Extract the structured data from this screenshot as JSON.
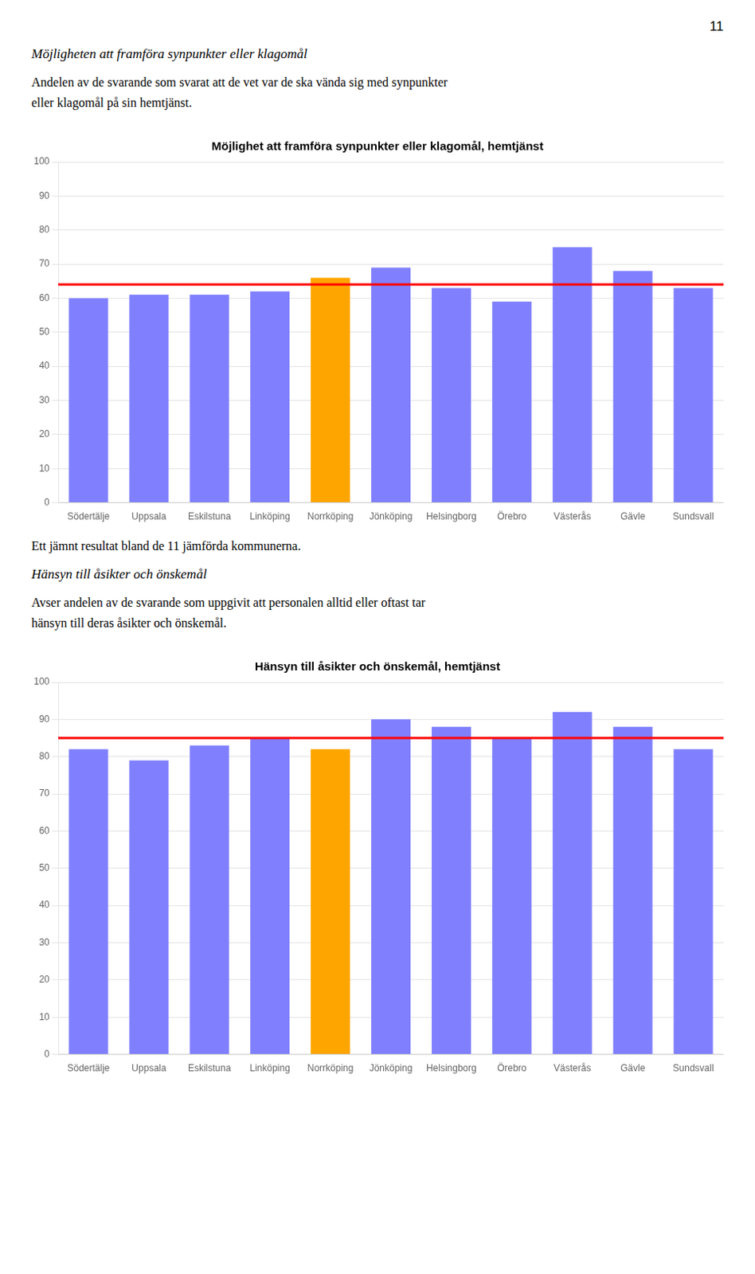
{
  "chart_data": [
    {
      "type": "bar",
      "annotations": [
        "11",
        "Möjligheten att framföra synpunkter eller klagomål",
        "Andelen av de svarande som svarat att de vet var de ska vända sig med synpunkter\neller klagomål på sin hemtjänst."
      ],
      "title": "Möjlighet att framföra synpunkter eller klagomål, hemtjänst",
      "categories": [
        "Södertälje",
        "Uppsala",
        "Eskilstuna",
        "Linköping",
        "Norrköping",
        "Jönköping",
        "Helsingborg",
        "Örebro",
        "Västerås",
        "Gävle",
        "Sundsvall"
      ],
      "values": [
        60,
        61,
        61,
        62,
        66,
        69,
        63,
        59,
        75,
        68,
        63
      ],
      "colors": [
        "#8080FF",
        "#8080FF",
        "#8080FF",
        "#8080FF",
        "#FFA500",
        "#8080FF",
        "#8080FF",
        "#8080FF",
        "#8080FF",
        "#8080FF",
        "#8080FF"
      ],
      "reference_line": {
        "value": 64,
        "color": "#FF0000"
      },
      "ylim": [
        0,
        100
      ],
      "yticks": [
        0,
        10,
        20,
        30,
        40,
        50,
        60,
        70,
        80,
        90,
        100
      ],
      "grid": true
    },
    {
      "type": "bar",
      "annotations": [
        "Ett jämnt resultat bland de 11 jämförda kommunerna.",
        "Hänsyn till åsikter och önskemål",
        "Avser andelen av de svarande som uppgivit att personalen alltid eller oftast tar\nhänsyn till deras åsikter och önskemål."
      ],
      "title": "Hänsyn till åsikter och önskemål, hemtjänst",
      "categories": [
        "Södertälje",
        "Uppsala",
        "Eskilstuna",
        "Linköping",
        "Norrköping",
        "Jönköping",
        "Helsingborg",
        "Örebro",
        "Västerås",
        "Gävle",
        "Sundsvall"
      ],
      "values": [
        82,
        79,
        83,
        85,
        82,
        90,
        88,
        85,
        92,
        88,
        82
      ],
      "colors": [
        "#8080FF",
        "#8080FF",
        "#8080FF",
        "#8080FF",
        "#FFA500",
        "#8080FF",
        "#8080FF",
        "#8080FF",
        "#8080FF",
        "#8080FF",
        "#8080FF"
      ],
      "reference_line": {
        "value": 85,
        "color": "#FF0000"
      },
      "ylim": [
        0,
        100
      ],
      "yticks": [
        0,
        10,
        20,
        30,
        40,
        50,
        60,
        70,
        80,
        90,
        100
      ],
      "grid": true
    }
  ]
}
